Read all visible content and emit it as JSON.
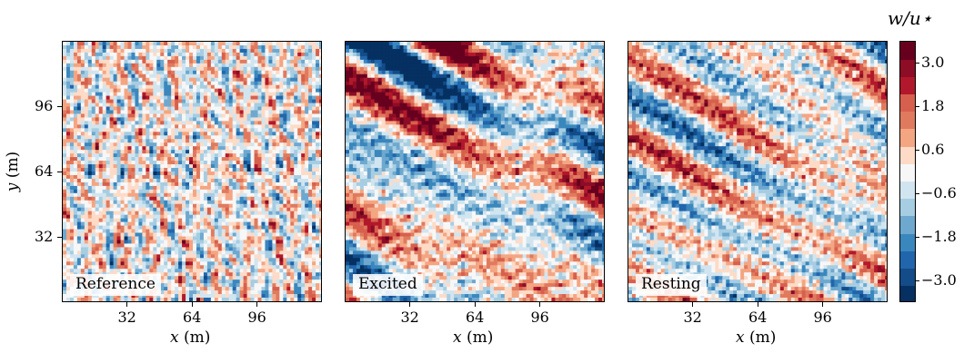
{
  "chart_data": {
    "type": "heatmap",
    "panels": [
      {
        "label": "Reference",
        "pattern": "isotropic"
      },
      {
        "label": "Excited",
        "pattern": "streaks"
      },
      {
        "label": "Resting",
        "pattern": "streaks"
      }
    ],
    "x_ticks": [
      "32",
      "64",
      "96"
    ],
    "x_tick_values": [
      32,
      64,
      96
    ],
    "xlabel_var": "x",
    "xlabel_unit": "(m)",
    "y_ticks": [
      "32",
      "64",
      "96"
    ],
    "y_tick_values": [
      32,
      64,
      96
    ],
    "ylabel_var": "y",
    "ylabel_unit": "(m)",
    "xlim": [
      0,
      128
    ],
    "ylim": [
      0,
      128
    ],
    "colorbar": {
      "title": "w/u⋆",
      "ticks": [
        "3.0",
        "1.8",
        "0.6",
        "−0.6",
        "−1.8",
        "−3.0"
      ],
      "tick_values": [
        3.0,
        1.8,
        0.6,
        -0.6,
        -1.8,
        -3.0
      ],
      "range": [
        -3.6,
        3.6
      ],
      "colormap": "RdBu_r",
      "levels": [
        "#053061",
        "#134c88",
        "#2166ac",
        "#3a87bd",
        "#6ea8cf",
        "#a6cde2",
        "#d1e5f0",
        "#f7f7f7",
        "#fddbc7",
        "#f4a582",
        "#e07a5f",
        "#d6604d",
        "#b2182b",
        "#8c0d25",
        "#67001f"
      ]
    }
  }
}
